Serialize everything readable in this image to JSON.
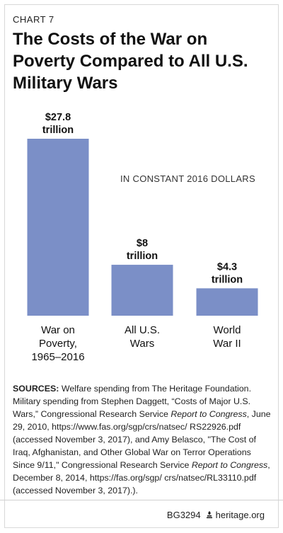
{
  "header": {
    "chart_label": "CHART 7",
    "title": "The Costs of the War on Poverty Compared to All U.S. Military Wars"
  },
  "chart_data": {
    "type": "bar",
    "title": "The Costs of the War on Poverty Compared to All U.S. Military Wars",
    "annotation": "IN CONSTANT 2016 DOLLARS",
    "unit": "trillion",
    "categories": [
      "War on Poverty, 1965–2016",
      "All U.S. Wars",
      "World War II"
    ],
    "category_lines": [
      [
        "War on",
        "Poverty,",
        "1965–2016"
      ],
      [
        "All U.S.",
        "Wars"
      ],
      [
        "World",
        "War II"
      ]
    ],
    "values": [
      27.8,
      8,
      4.3
    ],
    "value_labels": [
      [
        "$27.8",
        "trillion"
      ],
      [
        "$8",
        "trillion"
      ],
      [
        "$4.3",
        "trillion"
      ]
    ],
    "xlabel": "",
    "ylabel": "",
    "ylim": [
      0,
      27.8
    ],
    "grid": false,
    "bar_color": "#7b8fc7"
  },
  "sources": {
    "lead": "SOURCES:",
    "segments": [
      {
        "text": " Welfare spending from The Heritage Foundation. Military spending from Stephen Daggett, “Costs of Major U.S. Wars,” Congressional Research Service ",
        "italic": false
      },
      {
        "text": "Report to Congress",
        "italic": true
      },
      {
        "text": ", June 29, 2010, https://www.fas.org/sgp/crs/natsec/ RS22926.pdf (accessed November 3, 2017), and Amy Belasco, \"The Cost of Iraq, Afghanistan, and Other Global War on Terror Operations Since 9/11,\" Congressional Research Service ",
        "italic": false
      },
      {
        "text": "Report to Congress",
        "italic": true
      },
      {
        "text": ", December 8, 2014, https://fas.org/sgp/ crs/natsec/RL33110.pdf (accessed November 3, 2017).).",
        "italic": false
      }
    ]
  },
  "footer": {
    "code": "BG3294",
    "site": "heritage.org",
    "icon": "lamp-icon"
  }
}
